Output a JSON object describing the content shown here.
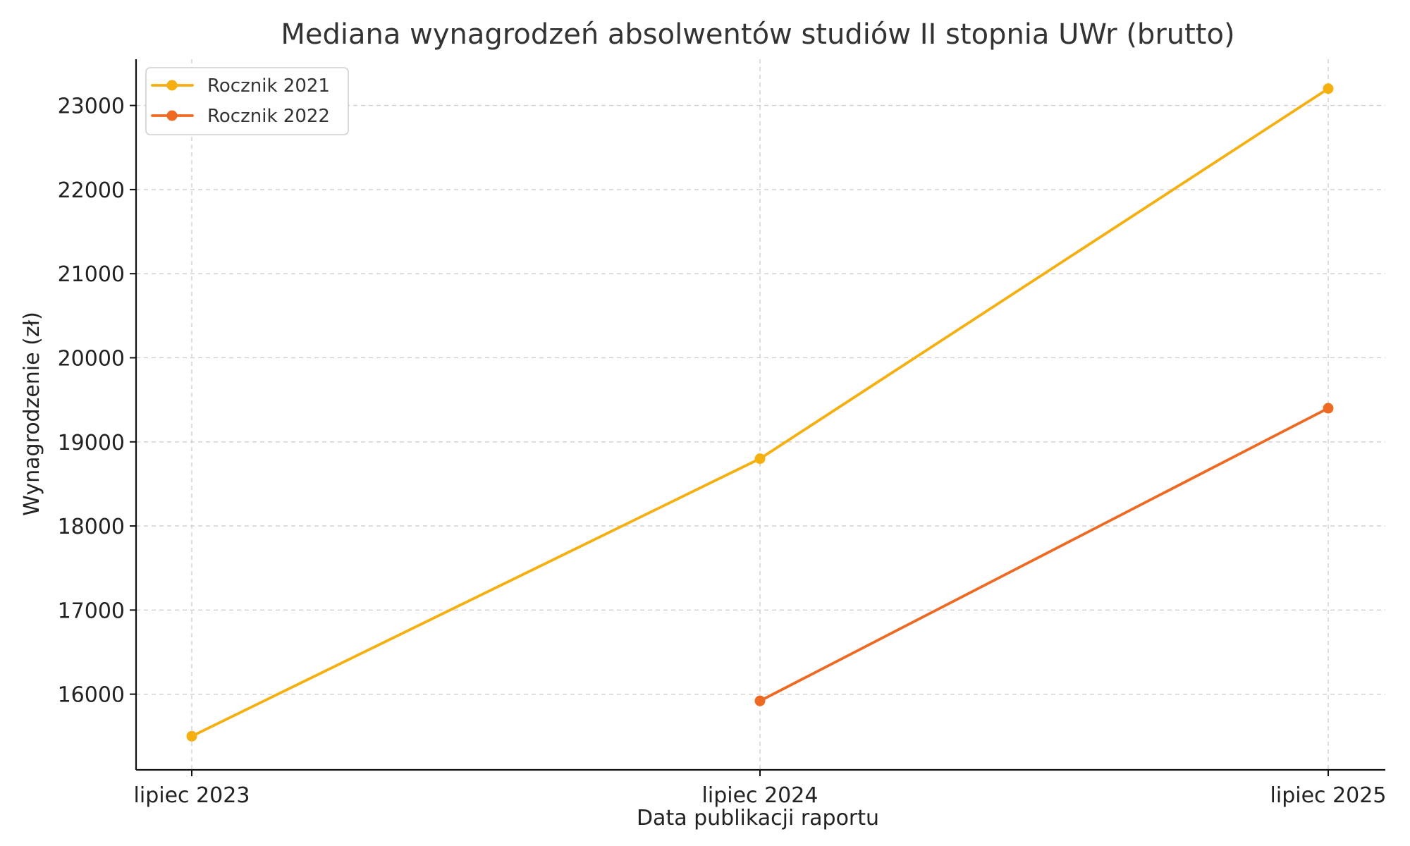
{
  "chart_data": {
    "type": "line",
    "title": "Mediana wynagrodzeń absolwentów studiów II stopnia UWr (brutto)",
    "xlabel": "Data publikacji raportu",
    "ylabel": "Wynagrodzenie (zł)",
    "categories": [
      "lipiec 2023",
      "lipiec 2024",
      "lipiec 2025"
    ],
    "ylim": [
      15100,
      23550
    ],
    "yticks": [
      16000,
      17000,
      18000,
      19000,
      20000,
      21000,
      22000,
      23000
    ],
    "grid": true,
    "legend_position": "top-left",
    "series": [
      {
        "name": "Rocznik 2021",
        "color": "#F5AF0F",
        "values": [
          15500,
          18800,
          23200
        ]
      },
      {
        "name": "Rocznik 2022",
        "color": "#EE6A23",
        "values": [
          null,
          15920,
          19400
        ]
      }
    ]
  }
}
